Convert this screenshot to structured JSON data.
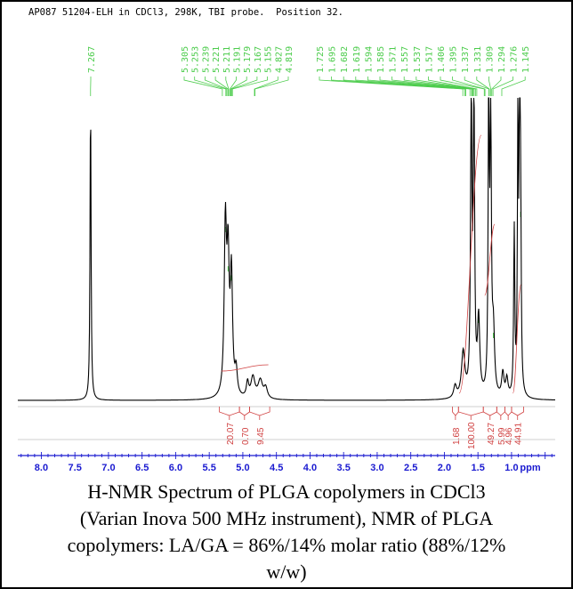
{
  "header": {
    "text": "AP087 51204-ELH in CDCl3, 298K, TBI probe.  Position 32."
  },
  "caption": {
    "line1": "H-NMR Spectrum of PLGA copolymers in CDCl3",
    "line2": "(Varian Inova 500 MHz instrument), NMR of PLGA",
    "line3": "copolymers: LA/GA = 86%/14% molar ratio (88%/12%",
    "line4": "w/w)"
  },
  "colors": {
    "spectrum": "#000000",
    "peak_labels": "#4ccc4c",
    "integrals": "#d04040",
    "axis": "#1a1ad0"
  },
  "chart_data": {
    "type": "line",
    "title": "",
    "xlabel": "ppm",
    "xlim": [
      8.35,
      0.35
    ],
    "x_reversed": true,
    "ticks": [
      "8.0",
      "7.5",
      "7.0",
      "6.5",
      "6.0",
      "5.5",
      "5.0",
      "4.5",
      "4.0",
      "3.5",
      "3.0",
      "2.5",
      "2.0",
      "1.5",
      "1.0"
    ],
    "peaks": [
      {
        "ppm": 7.267,
        "height": 1.0,
        "width": 0.009
      },
      {
        "ppm": 5.26,
        "height": 0.55,
        "width": 0.02
      },
      {
        "ppm": 5.22,
        "height": 0.42,
        "width": 0.02
      },
      {
        "ppm": 5.17,
        "height": 0.39,
        "width": 0.02
      },
      {
        "ppm": 5.1,
        "height": 0.08,
        "width": 0.02
      },
      {
        "ppm": 4.93,
        "height": 0.05,
        "width": 0.02
      },
      {
        "ppm": 4.85,
        "height": 0.07,
        "width": 0.035
      },
      {
        "ppm": 4.74,
        "height": 0.06,
        "width": 0.04
      },
      {
        "ppm": 4.66,
        "height": 0.035,
        "width": 0.03
      },
      {
        "ppm": 1.84,
        "height": 0.04,
        "width": 0.025
      },
      {
        "ppm": 1.72,
        "height": 0.15,
        "width": 0.03
      },
      {
        "ppm": 1.6,
        "height": 1.0,
        "width": 0.012
      },
      {
        "ppm": 1.56,
        "height": 1.0,
        "width": 0.012
      },
      {
        "ppm": 1.49,
        "height": 0.25,
        "width": 0.02
      },
      {
        "ppm": 1.34,
        "height": 1.0,
        "width": 0.01
      },
      {
        "ppm": 1.31,
        "height": 0.9,
        "width": 0.012
      },
      {
        "ppm": 1.27,
        "height": 0.2,
        "width": 0.02
      },
      {
        "ppm": 1.13,
        "height": 0.08,
        "width": 0.02
      },
      {
        "ppm": 1.07,
        "height": 0.06,
        "width": 0.02
      },
      {
        "ppm": 0.96,
        "height": 0.55,
        "width": 0.01
      },
      {
        "ppm": 0.905,
        "height": 1.0,
        "width": 0.008
      },
      {
        "ppm": 0.88,
        "height": 1.0,
        "width": 0.008
      },
      {
        "ppm": 0.865,
        "height": 0.6,
        "width": 0.01
      }
    ],
    "peak_label_groups": [
      {
        "labels": [
          "7.267"
        ],
        "ppm": [
          7.267
        ]
      },
      {
        "labels": [
          "5.305",
          "5.253",
          "5.239",
          "5.221",
          "5.211",
          "5.191",
          "5.179",
          "5.167",
          "5.155",
          "4.827",
          "4.819"
        ],
        "ppm": [
          5.305,
          5.253,
          5.239,
          5.221,
          5.211,
          5.191,
          5.179,
          5.167,
          5.155,
          4.827,
          4.819
        ]
      },
      {
        "labels": [
          "1.725",
          "1.695",
          "1.682",
          "1.619",
          "1.594",
          "1.585",
          "1.571",
          "1.557",
          "1.537",
          "1.517",
          "1.406",
          "1.395",
          "1.337",
          "1.331",
          "1.309",
          "1.294",
          "1.276",
          "1.145"
        ],
        "ppm": [
          1.725,
          1.695,
          1.682,
          1.619,
          1.594,
          1.585,
          1.571,
          1.557,
          1.537,
          1.517,
          1.406,
          1.395,
          1.337,
          1.331,
          1.309,
          1.294,
          1.276,
          1.145
        ]
      }
    ],
    "integrals": [
      {
        "value": "20.07",
        "from": 5.35,
        "to": 5.05
      },
      {
        "value": "0.70",
        "from": 5.05,
        "to": 4.9
      },
      {
        "value": "9.45",
        "from": 4.9,
        "to": 4.6
      },
      {
        "value": "1.68",
        "from": 1.88,
        "to": 1.79
      },
      {
        "value": "100.00",
        "from": 1.79,
        "to": 1.42
      },
      {
        "value": "49.27",
        "from": 1.42,
        "to": 1.22
      },
      {
        "value": "5.99",
        "from": 1.22,
        "to": 1.1
      },
      {
        "value": "4.96",
        "from": 1.1,
        "to": 1.0
      },
      {
        "value": "44.91",
        "from": 1.0,
        "to": 0.82
      }
    ]
  }
}
